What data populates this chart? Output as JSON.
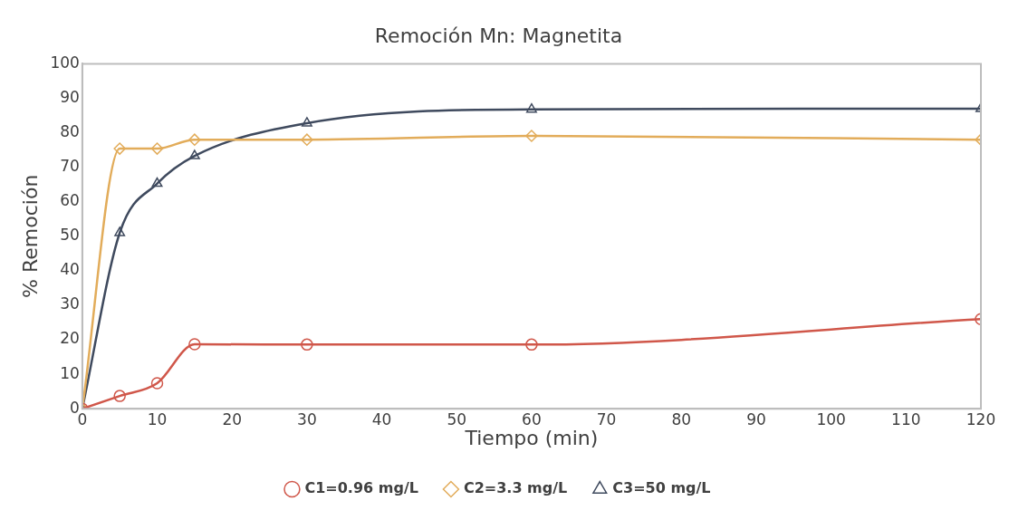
{
  "chart_data": {
    "type": "line",
    "title": "Remoción Mn: Magnetita",
    "xlabel": "Tiempo (min)",
    "ylabel": "% Remoción",
    "x": [
      0,
      5,
      10,
      15,
      30,
      60,
      120
    ],
    "series": [
      {
        "name": "C1=0.96 mg/L",
        "color": "#d0574a",
        "marker": "circle",
        "values": [
          0,
          3.7,
          7.4,
          18.7,
          18.6,
          18.6,
          26
        ]
      },
      {
        "name": "C2=3.3 mg/L",
        "color": "#e2ac5a",
        "marker": "diamond",
        "values": [
          0,
          75.4,
          75.4,
          78,
          78,
          79.1,
          78
        ]
      },
      {
        "name": "C3=50 mg/L",
        "color": "#3f4a5e",
        "marker": "triangle",
        "values": [
          0,
          51,
          65.3,
          73.3,
          82.8,
          86.8,
          87
        ]
      }
    ],
    "xlim": [
      0,
      120
    ],
    "xticks": [
      0,
      10,
      20,
      30,
      40,
      50,
      60,
      70,
      80,
      90,
      100,
      110,
      120
    ],
    "ylim": [
      0,
      100
    ],
    "yticks": [
      0,
      10,
      20,
      30,
      40,
      50,
      60,
      70,
      80,
      90,
      100
    ],
    "grid": false,
    "legend": "bottom",
    "line_style": "solid"
  }
}
